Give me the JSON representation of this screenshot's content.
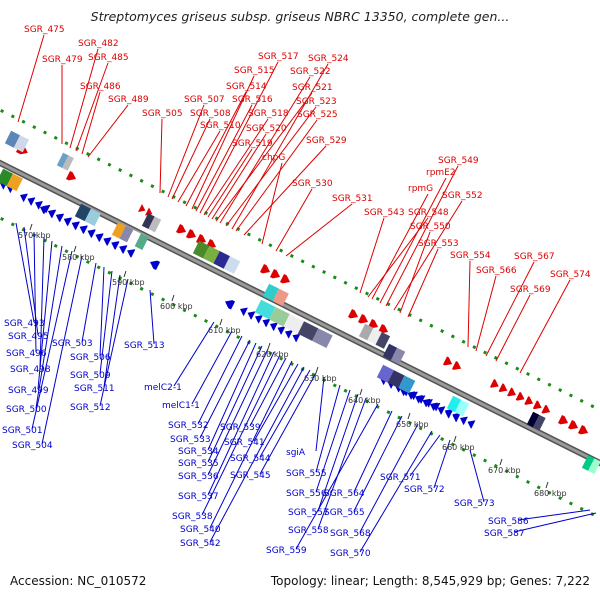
{
  "title": "Streptomyces griseus subsp. griseus NBRC 13350, complete gen...",
  "footer": {
    "accession": "Accession: NC_010572",
    "summary": "Topology: linear; Length: 8,545,929 bp; Genes: 7,222"
  },
  "colors": {
    "forward": "#dd0000",
    "reverse": "#0000cc",
    "backbone": "#7a7a7a",
    "guide": "#1a8a1a"
  },
  "ruler": [
    "570 kbp",
    "580 kbp",
    "590 kbp",
    "600 kbp",
    "610 kbp",
    "620 kbp",
    "630 kbp",
    "640 kbp",
    "650 kbp",
    "660 kbp",
    "670 kbp",
    "680 kbp"
  ],
  "top_labels": [
    "SGR_475",
    "SGR_479",
    "SGR_482",
    "SGR_485",
    "SGR_486",
    "SGR_489",
    "SGR_505",
    "SGR_507",
    "SGR_508",
    "SGR_510",
    "SGR_514",
    "SGR_515",
    "SGR_516",
    "SGR_517",
    "SGR_518",
    "SGR_519",
    "SGR_520",
    "SGR_521",
    "SGR_522",
    "SGR_523",
    "SGR_524",
    "SGR_525",
    "SGR_529",
    "chpG",
    "SGR_530",
    "SGR_531",
    "SGR_543",
    "SGR_548",
    "rpmG",
    "rpmE2",
    "SGR_549",
    "SGR_552",
    "SGR_550",
    "SGR_553",
    "SGR_554",
    "SGR_566",
    "SGR_567",
    "SGR_569",
    "SGR_574"
  ],
  "bottom_labels": [
    "SGR_493",
    "SGR_495",
    "SGR_496",
    "SGR_498",
    "SGR_499",
    "SGR_500",
    "SGR_501",
    "SGR_504",
    "SGR_503",
    "SGR_506",
    "SGR_509",
    "SGR_511",
    "SGR_512",
    "SGR_513",
    "melC2-1",
    "melC1-1",
    "SGR_532",
    "SGR_533",
    "SGR_534",
    "SGR_535",
    "SGR_536",
    "SGR_537",
    "SGR_538",
    "SGR_539",
    "SGR_540",
    "SGR_541",
    "SGR_542",
    "SGR_544",
    "SGR_545",
    "sgiA",
    "SGR_555",
    "SGR_556",
    "SGR_557",
    "SGR_558",
    "SGR_559",
    "SGR_564",
    "SGR_565",
    "SGR_568",
    "SGR_570",
    "SGR_571",
    "SGR_572",
    "SGR_573",
    "SGR_586",
    "SGR_587"
  ]
}
